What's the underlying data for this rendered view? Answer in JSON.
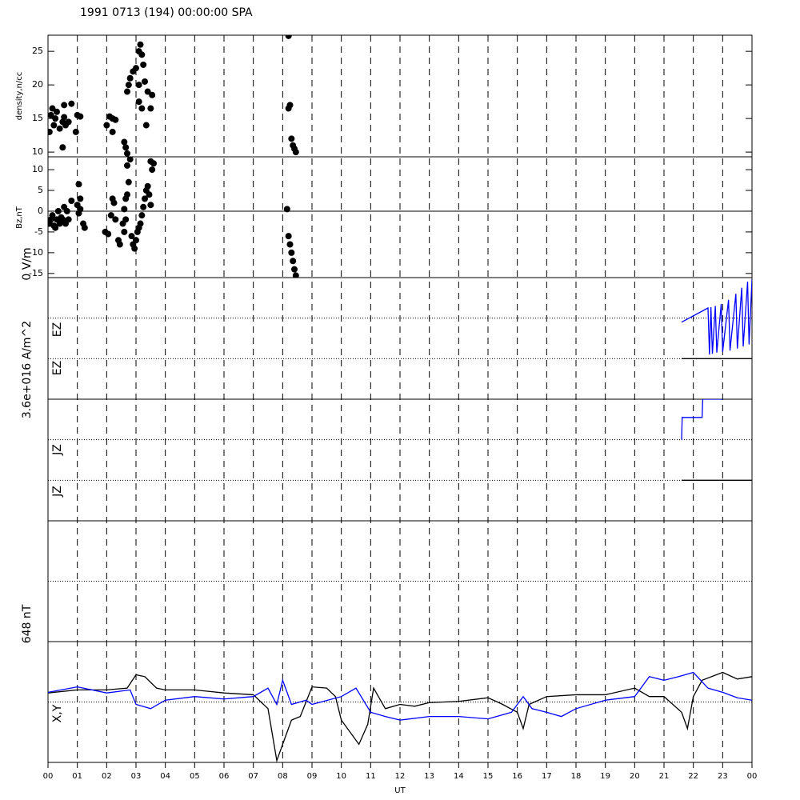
{
  "chart_data": [
    {
      "type": "scatter",
      "title": "1991 0713 (194) 00:00:00 SPA",
      "ylabel": "density,n/cc",
      "color": "#000000",
      "x": [
        0.05,
        0.1,
        0.15,
        0.2,
        0.25,
        0.3,
        0.4,
        0.5,
        0.55,
        0.6,
        0.7,
        0.55,
        0.8,
        0.5,
        1.0,
        1.1,
        0.95,
        2.0,
        2.1,
        2.2,
        2.3,
        2.2,
        2.6,
        2.65,
        2.7,
        2.7,
        2.75,
        2.8,
        2.9,
        3.0,
        3.1,
        3.15,
        3.2,
        3.25,
        3.1,
        3.2,
        3.3,
        3.4,
        3.35,
        3.5,
        3.55,
        3.1,
        8.2,
        8.25,
        8.2,
        8.3,
        8.35,
        8.4,
        8.45
      ],
      "values": [
        13,
        15.5,
        16.5,
        14,
        15,
        16,
        13.5,
        14.5,
        15.2,
        14,
        14.5,
        17,
        17.2,
        10.7,
        15.5,
        15.3,
        13,
        14,
        15.3,
        15,
        14.8,
        13,
        11.5,
        10.7,
        9.8,
        19,
        20,
        21,
        22,
        22.5,
        25,
        26,
        24.5,
        23,
        17.5,
        16.5,
        20.5,
        19,
        14,
        16.5,
        18.5,
        20,
        27.3,
        17,
        16.5,
        12,
        11,
        10.5,
        10
      ],
      "ylim": [
        9.3,
        27.4
      ],
      "yticks": [
        10,
        15,
        20,
        25
      ]
    },
    {
      "type": "scatter",
      "ylabel": "Bz,nT",
      "color": "#000000",
      "zero_line": true,
      "x": [
        0.05,
        0.1,
        0.15,
        0.2,
        0.25,
        0.3,
        0.35,
        0.4,
        0.45,
        0.5,
        0.55,
        0.6,
        0.65,
        0.7,
        0.8,
        1.0,
        1.05,
        1.1,
        1.05,
        1.1,
        1.2,
        1.25,
        1.95,
        2.05,
        2.15,
        2.2,
        2.3,
        2.25,
        2.4,
        2.45,
        2.6,
        2.65,
        2.55,
        2.6,
        2.65,
        2.7,
        2.75,
        2.7,
        2.8,
        2.85,
        2.9,
        2.95,
        3.0,
        3.05,
        3.1,
        3.15,
        3.2,
        3.25,
        3.3,
        3.35,
        3.4,
        3.45,
        3.5,
        3.5,
        3.55,
        3.6,
        8.15,
        8.2,
        8.25,
        8.3,
        8.35,
        8.4,
        8.45
      ],
      "values": [
        -3,
        -2,
        -1,
        -3.5,
        -4,
        -2,
        0,
        -3,
        -1.5,
        -2,
        1,
        -3,
        0,
        -2,
        2.5,
        1.5,
        -0.5,
        0.5,
        6.5,
        3,
        -3,
        -4,
        -5,
        -5.5,
        -1,
        3,
        -2,
        2,
        -7,
        -8,
        -5,
        -2,
        -3,
        0.5,
        3,
        4,
        7,
        11,
        12.5,
        -6,
        -8,
        -9,
        -7,
        -5,
        -4,
        -3,
        -1,
        1,
        3,
        5,
        6,
        4,
        1.5,
        12,
        10,
        11.5,
        0.5,
        -6,
        -8,
        -10,
        -12,
        -14,
        -15.5
      ],
      "ylim": [
        -16,
        13.1
      ],
      "yticks": [
        -15,
        -10,
        -5,
        0,
        5,
        10
      ]
    },
    {
      "type": "line",
      "ylabel": "0 V/m",
      "scale_label": "3.6e+016 A/m^2",
      "trace_labels": [
        "EZ",
        "EZ"
      ],
      "ylim": [
        0,
        3
      ],
      "series": [
        {
          "color": "#0000ff",
          "x": [
            21.6,
            22.5,
            22.55,
            22.6,
            22.65,
            22.75,
            22.8,
            22.95,
            23.0,
            23.2,
            23.25,
            23.45,
            23.5,
            23.65,
            23.7,
            23.85,
            23.9,
            24
          ],
          "values": [
            1.9,
            2.25,
            1.1,
            2.27,
            1.12,
            2.3,
            1.15,
            2.35,
            1.17,
            2.45,
            1.2,
            2.6,
            1.25,
            2.75,
            1.3,
            2.9,
            1.35,
            2.95
          ]
        },
        {
          "color": "#000000",
          "x": [
            21.6,
            24
          ],
          "values": [
            1,
            1
          ]
        }
      ]
    },
    {
      "type": "line",
      "trace_labels": [
        "JZ",
        "JZ"
      ],
      "ylim": [
        0,
        3
      ],
      "series": [
        {
          "color": "#0000ff",
          "x": [
            21.6,
            21.62,
            22.3,
            22.32,
            23.0
          ],
          "values": [
            2.0,
            2.55,
            2.55,
            3.0,
            3.0
          ]
        },
        {
          "color": "#000000",
          "x": [
            21.6,
            24
          ],
          "values": [
            1,
            1
          ]
        }
      ]
    },
    {
      "type": "line",
      "scale_label": "648 nT",
      "trace_labels": [
        "X,Y"
      ],
      "xlabel": "UT",
      "ylim": [
        -1,
        1
      ],
      "xlim": [
        0,
        24
      ],
      "xticks": [
        {
          "value": 0,
          "label": "00"
        },
        {
          "value": 1,
          "label": "01"
        },
        {
          "value": 2,
          "label": "02"
        },
        {
          "value": 3,
          "label": "03"
        },
        {
          "value": 4,
          "label": "04"
        },
        {
          "value": 5,
          "label": "05"
        },
        {
          "value": 6,
          "label": "06"
        },
        {
          "value": 7,
          "label": "07"
        },
        {
          "value": 8,
          "label": "08"
        },
        {
          "value": 9,
          "label": "09"
        },
        10,
        11,
        12,
        13,
        14,
        15,
        16,
        17,
        18,
        19,
        20,
        21,
        22,
        23,
        {
          "value": 24,
          "label": "00"
        }
      ],
      "series": [
        {
          "color": "#000000",
          "x": [
            0,
            1,
            2,
            2.7,
            3,
            3.3,
            3.7,
            4,
            5,
            6,
            7,
            7.5,
            7.8,
            8,
            8.3,
            8.6,
            9,
            9.5,
            9.8,
            10,
            10.3,
            10.6,
            10.9,
            11.1,
            11.5,
            12,
            12.5,
            13,
            14,
            15,
            15.5,
            16,
            16.2,
            16.4,
            17,
            18,
            19,
            20,
            20.5,
            21,
            21.3,
            21.6,
            21.8,
            22,
            22.3,
            23,
            23.5,
            24
          ],
          "values": [
            0.15,
            0.2,
            0.2,
            0.23,
            0.45,
            0.42,
            0.23,
            0.2,
            0.2,
            0.15,
            0.12,
            -0.11,
            -0.97,
            -0.7,
            -0.3,
            -0.24,
            0.25,
            0.23,
            0.09,
            -0.3,
            -0.5,
            -0.7,
            -0.37,
            0.23,
            -0.11,
            -0.04,
            -0.07,
            -0.01,
            0.01,
            0.07,
            -0.04,
            -0.17,
            -0.44,
            -0.04,
            0.09,
            0.12,
            0.12,
            0.23,
            0.09,
            0.09,
            -0.04,
            -0.17,
            -0.44,
            0.09,
            0.36,
            0.49,
            0.38,
            0.42
          ]
        },
        {
          "color": "#0000ff",
          "x": [
            0,
            1,
            2,
            2.8,
            3,
            3.5,
            4,
            5,
            6,
            7,
            7.5,
            7.8,
            8,
            8.3,
            8.8,
            9,
            10,
            10.5,
            11,
            11.5,
            12,
            13,
            14,
            15,
            15.8,
            16.2,
            16.5,
            17,
            17.5,
            18,
            19,
            20,
            20.5,
            21,
            21.5,
            22,
            22.5,
            23,
            23.5,
            24
          ],
          "values": [
            0.16,
            0.25,
            0.15,
            0.2,
            -0.04,
            -0.11,
            0.03,
            0.09,
            0.05,
            0.09,
            0.23,
            -0.04,
            0.36,
            -0.04,
            0.03,
            -0.04,
            0.09,
            0.23,
            -0.17,
            -0.24,
            -0.3,
            -0.24,
            -0.24,
            -0.28,
            -0.17,
            0.09,
            -0.11,
            -0.17,
            -0.24,
            -0.11,
            0.03,
            0.09,
            0.42,
            0.36,
            0.42,
            0.49,
            0.23,
            0.16,
            0.07,
            0.03
          ]
        }
      ]
    }
  ]
}
